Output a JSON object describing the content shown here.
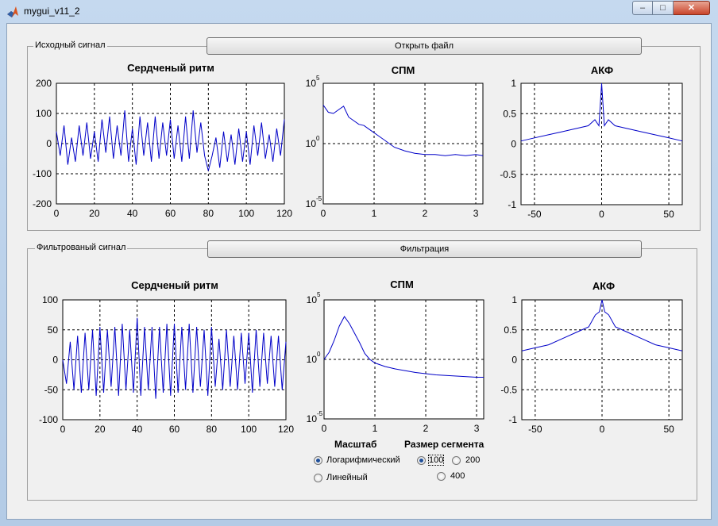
{
  "window": {
    "title": "mygui_v11_2",
    "min": "–",
    "max": "□",
    "close": "✕"
  },
  "panel1": {
    "title": "Исходный сигнал",
    "button": "Открыть файл",
    "ax1": {
      "title": "Сердченый ритм",
      "xticks": [
        "0",
        "20",
        "40",
        "60",
        "80",
        "100",
        "120"
      ],
      "yticks": [
        "200",
        "100",
        "0",
        "-100",
        "-200"
      ]
    },
    "ax2": {
      "title": "СПМ",
      "xticks": [
        "0",
        "1",
        "2",
        "3"
      ],
      "yticks": [
        "10",
        "10",
        "10"
      ],
      "yexp": [
        "5",
        "0",
        "-5"
      ]
    },
    "ax3": {
      "title": "АКФ",
      "xticks": [
        "-50",
        "0",
        "50"
      ],
      "yticks": [
        "1",
        "0.5",
        "0",
        "-0.5",
        "-1"
      ]
    }
  },
  "panel2": {
    "title": "Фильтрованый сигнал",
    "button": "Фильтрация",
    "ax1": {
      "title": "Сердченый ритм",
      "xticks": [
        "0",
        "20",
        "40",
        "60",
        "80",
        "100",
        "120"
      ],
      "yticks": [
        "100",
        "50",
        "0",
        "-50",
        "-100"
      ]
    },
    "ax2": {
      "title": "СПМ",
      "xticks": [
        "0",
        "1",
        "2",
        "3"
      ],
      "yticks": [
        "10",
        "10",
        "10"
      ],
      "yexp": [
        "5",
        "0",
        "-5"
      ]
    },
    "ax3": {
      "title": "АКФ",
      "xticks": [
        "-50",
        "0",
        "50"
      ],
      "yticks": [
        "1",
        "0.5",
        "0",
        "-0.5",
        "-1"
      ]
    }
  },
  "scale": {
    "title": "Масштаб",
    "log": "Логарифмический",
    "lin": "Линейный",
    "selected": "log"
  },
  "segment": {
    "title": "Размер сегмента",
    "o100": "100",
    "o200": "200",
    "o400": "400",
    "selected": "100"
  },
  "colors": {
    "line": "#0000c8",
    "accent": "#1f4f9a"
  },
  "icons": {
    "app": "matlab-icon",
    "minimize": "minimize-icon",
    "maximize": "maximize-icon",
    "close": "close-icon"
  },
  "chart_data": [
    {
      "type": "line",
      "panel": "Исходный сигнал",
      "title": "Сердченый ритм",
      "xlim": [
        0,
        120
      ],
      "ylim": [
        -200,
        200
      ],
      "grid": true,
      "series": [
        {
          "x": [
            0,
            2,
            4,
            6,
            8,
            10,
            12,
            14,
            16,
            18,
            20,
            22,
            24,
            26,
            28,
            30,
            32,
            34,
            36,
            38,
            40,
            42,
            44,
            46,
            48,
            50,
            52,
            54,
            56,
            58,
            60,
            62,
            64,
            66,
            68,
            70,
            72,
            74,
            76,
            78,
            80,
            82,
            84,
            86,
            88,
            90,
            92,
            94,
            96,
            98,
            100,
            102,
            104,
            106,
            108,
            110,
            112,
            114,
            116,
            118,
            120
          ],
          "y": [
            40,
            -40,
            60,
            -70,
            20,
            -60,
            60,
            -40,
            70,
            -50,
            40,
            -60,
            80,
            -30,
            90,
            -50,
            60,
            -40,
            110,
            -60,
            50,
            -70,
            90,
            -40,
            70,
            -60,
            90,
            -50,
            70,
            -40,
            80,
            -50,
            60,
            -60,
            90,
            -50,
            110,
            -30,
            70,
            -40,
            -90,
            -40,
            20,
            -80,
            40,
            -60,
            30,
            -70,
            50,
            -60,
            40,
            -70,
            60,
            -40,
            70,
            -50,
            30,
            -60,
            50,
            -40,
            80
          ]
        }
      ]
    },
    {
      "type": "line",
      "panel": "Исходный сигнал",
      "title": "СПМ",
      "xlim": [
        0,
        3.14
      ],
      "ylim": [
        -5,
        5
      ],
      "yscale": "log",
      "grid": true,
      "series": [
        {
          "x": [
            0,
            0.1,
            0.2,
            0.3,
            0.4,
            0.5,
            0.6,
            0.7,
            0.8,
            0.9,
            1.0,
            1.1,
            1.2,
            1.3,
            1.4,
            1.6,
            1.8,
            2.0,
            2.2,
            2.4,
            2.6,
            2.8,
            3.0,
            3.14
          ],
          "y": [
            3.2,
            2.6,
            2.5,
            2.8,
            3.1,
            2.2,
            1.9,
            1.6,
            1.5,
            1.2,
            0.9,
            0.6,
            0.3,
            0.0,
            -0.3,
            -0.6,
            -0.8,
            -0.9,
            -0.9,
            -1.0,
            -0.9,
            -1.0,
            -0.9,
            -1.0
          ]
        }
      ]
    },
    {
      "type": "line",
      "panel": "Исходный сигнал",
      "title": "АКФ",
      "xlim": [
        -60,
        60
      ],
      "ylim": [
        -1,
        1
      ],
      "grid": true,
      "series": [
        {
          "x": [
            -60,
            -50,
            -40,
            -30,
            -20,
            -10,
            -5,
            -2,
            0,
            2,
            5,
            10,
            20,
            30,
            40,
            50,
            60
          ],
          "y": [
            0.05,
            0.1,
            0.15,
            0.2,
            0.25,
            0.3,
            0.4,
            0.3,
            1,
            0.3,
            0.4,
            0.3,
            0.25,
            0.2,
            0.15,
            0.1,
            0.05
          ]
        }
      ]
    },
    {
      "type": "line",
      "panel": "Фильтрованый сигнал",
      "title": "Сердченый ритм",
      "xlim": [
        0,
        120
      ],
      "ylim": [
        -100,
        100
      ],
      "grid": true,
      "series": [
        {
          "x": [
            0,
            2,
            4,
            6,
            8,
            10,
            12,
            14,
            16,
            18,
            20,
            22,
            24,
            26,
            28,
            30,
            32,
            34,
            36,
            38,
            40,
            42,
            44,
            46,
            48,
            50,
            52,
            54,
            56,
            58,
            60,
            62,
            64,
            66,
            68,
            70,
            72,
            74,
            76,
            78,
            80,
            82,
            84,
            86,
            88,
            90,
            92,
            94,
            96,
            98,
            100,
            102,
            104,
            106,
            108,
            110,
            112,
            114,
            116,
            118,
            120
          ],
          "y": [
            0,
            -40,
            30,
            -50,
            40,
            -55,
            45,
            -50,
            50,
            -60,
            55,
            -55,
            50,
            -45,
            55,
            -60,
            60,
            -50,
            50,
            -55,
            70,
            -60,
            55,
            -50,
            55,
            -65,
            55,
            -55,
            60,
            -60,
            60,
            -55,
            55,
            -50,
            60,
            -55,
            55,
            -45,
            50,
            -60,
            55,
            -45,
            35,
            -50,
            50,
            -45,
            40,
            -50,
            45,
            -40,
            45,
            -55,
            50,
            -45,
            45,
            -40,
            40,
            -45,
            40,
            -50,
            30
          ]
        }
      ]
    },
    {
      "type": "line",
      "panel": "Фильтрованый сигнал",
      "title": "СПМ",
      "xlim": [
        0,
        3.14
      ],
      "ylim": [
        -5,
        5
      ],
      "yscale": "log",
      "grid": true,
      "series": [
        {
          "x": [
            0,
            0.05,
            0.1,
            0.2,
            0.3,
            0.4,
            0.5,
            0.6,
            0.7,
            0.8,
            0.9,
            1.0,
            1.2,
            1.4,
            1.6,
            1.8,
            2.0,
            2.2,
            2.4,
            2.6,
            2.8,
            3.0,
            3.14
          ],
          "y": [
            0,
            0.3,
            0.6,
            1.6,
            2.8,
            3.6,
            3.0,
            2.2,
            1.4,
            0.5,
            0.0,
            -0.3,
            -0.6,
            -0.8,
            -0.95,
            -1.1,
            -1.2,
            -1.3,
            -1.35,
            -1.4,
            -1.45,
            -1.5,
            -1.5
          ]
        }
      ]
    },
    {
      "type": "line",
      "panel": "Фильтрованый сигнал",
      "title": "АКФ",
      "xlim": [
        -60,
        60
      ],
      "ylim": [
        -1,
        1
      ],
      "grid": true,
      "series": [
        {
          "x": [
            -60,
            -50,
            -40,
            -30,
            -20,
            -10,
            -5,
            -2,
            0,
            2,
            5,
            10,
            20,
            30,
            40,
            50,
            60
          ],
          "y": [
            0.15,
            0.2,
            0.25,
            0.35,
            0.45,
            0.55,
            0.75,
            0.8,
            1,
            0.8,
            0.75,
            0.55,
            0.45,
            0.35,
            0.25,
            0.2,
            0.15
          ]
        }
      ]
    }
  ]
}
